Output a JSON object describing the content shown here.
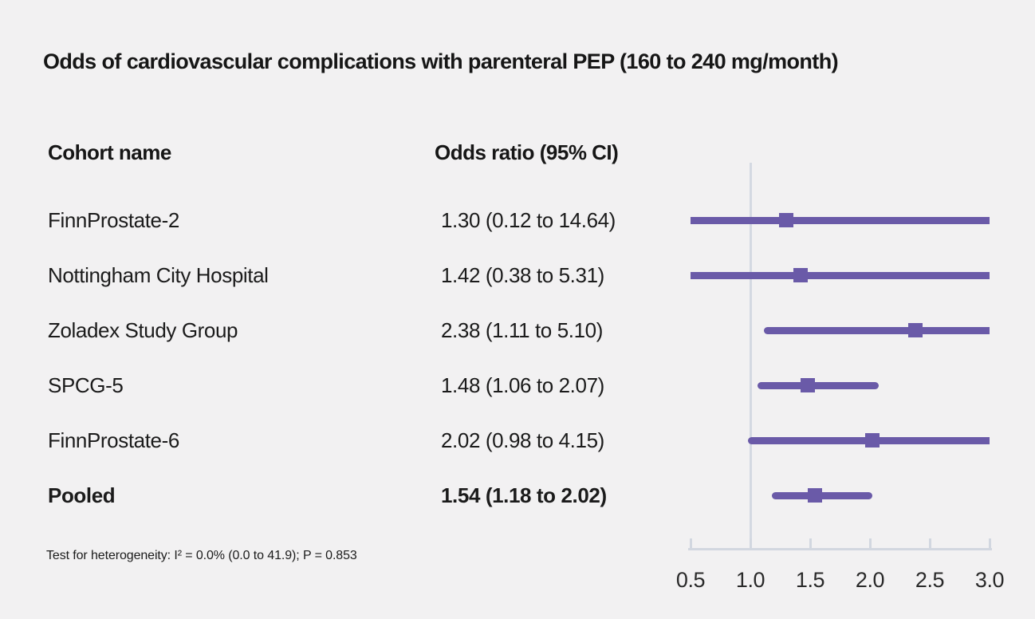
{
  "chart_data": {
    "type": "forest",
    "title": "Odds of cardiovascular complications with parenteral PEP (160 to 240 mg/month)",
    "columns": {
      "cohort": "Cohort name",
      "odds_ratio": "Odds ratio (95% CI)"
    },
    "rows": [
      {
        "cohort": "FinnProstate-2",
        "or": 1.3,
        "ci_low": 0.12,
        "ci_high": 14.64,
        "display": "1.30 (0.12 to 14.64)",
        "pooled": false
      },
      {
        "cohort": "Nottingham City Hospital",
        "or": 1.42,
        "ci_low": 0.38,
        "ci_high": 5.31,
        "display": "1.42 (0.38 to 5.31)",
        "pooled": false
      },
      {
        "cohort": "Zoladex Study Group",
        "or": 2.38,
        "ci_low": 1.11,
        "ci_high": 5.1,
        "display": "2.38 (1.11 to 5.10)",
        "pooled": false
      },
      {
        "cohort": "SPCG-5",
        "or": 1.48,
        "ci_low": 1.06,
        "ci_high": 2.07,
        "display": "1.48 (1.06 to 2.07)",
        "pooled": false
      },
      {
        "cohort": "FinnProstate-6",
        "or": 2.02,
        "ci_low": 0.98,
        "ci_high": 4.15,
        "display": "2.02 (0.98 to 4.15)",
        "pooled": false
      },
      {
        "cohort": "Pooled",
        "or": 1.54,
        "ci_low": 1.18,
        "ci_high": 2.02,
        "display": "1.54 (1.18 to 2.02)",
        "pooled": true
      }
    ],
    "x_axis": {
      "min": 0.5,
      "max": 3.0,
      "ticks": [
        0.5,
        1.0,
        1.5,
        2.0,
        2.5,
        3.0
      ],
      "tick_labels": [
        "0.5",
        "1.0",
        "1.5",
        "2.0",
        "2.5",
        "3.0"
      ],
      "reference_line": 1.0
    },
    "heterogeneity_note": "Test for heterogeneity: I² = 0.0% (0.0 to 41.9); P = 0.853",
    "colors": {
      "marker": "#6a5aa8",
      "ci_line": "#6a5aa8",
      "axis": "#d2d7e0",
      "reference_line": "#d4d9e2",
      "background": "#f2f1f2",
      "text": "#161616"
    }
  }
}
